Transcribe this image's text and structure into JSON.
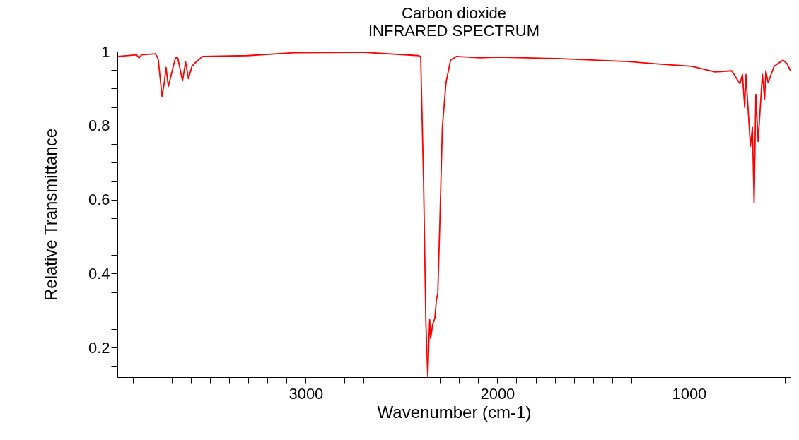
{
  "chart_data": {
    "type": "line",
    "title": "Carbon dioxide",
    "subtitle": "INFRARED SPECTRUM",
    "xlabel": "Wavenumber (cm-1)",
    "ylabel": "Relative Transmittance",
    "x": [
      3981,
      3883,
      3870,
      3858,
      3784,
      3770,
      3750,
      3738,
      3729,
      3717,
      3680,
      3668,
      3643,
      3627,
      3612,
      3594,
      3576,
      3539,
      3306,
      3060,
      2692,
      2410,
      2400,
      2385,
      2373,
      2363,
      2358,
      2353,
      2348,
      2338,
      2326,
      2318,
      2311,
      2301,
      2287,
      2268,
      2244,
      2213,
      2090,
      2002,
      1685,
      1317,
      1170,
      985,
      863,
      777,
      734,
      721,
      709,
      703,
      679,
      669,
      660,
      651,
      639,
      617,
      605,
      599,
      587,
      556,
      509,
      488,
      470
    ],
    "series": [
      {
        "color": "#ff0000",
        "values": [
          0.987,
          0.991,
          0.983,
          0.991,
          0.994,
          0.98,
          0.879,
          0.916,
          0.957,
          0.906,
          0.983,
          0.983,
          0.921,
          0.972,
          0.927,
          0.96,
          0.97,
          0.987,
          0.989,
          0.997,
          0.998,
          0.989,
          0.986,
          0.649,
          0.267,
          0.121,
          0.203,
          0.276,
          0.225,
          0.261,
          0.28,
          0.33,
          0.346,
          0.521,
          0.795,
          0.916,
          0.977,
          0.987,
          0.983,
          0.985,
          0.981,
          0.973,
          0.967,
          0.96,
          0.945,
          0.948,
          0.913,
          0.938,
          0.849,
          0.938,
          0.744,
          0.795,
          0.591,
          0.884,
          0.757,
          0.938,
          0.872,
          0.948,
          0.916,
          0.96,
          0.977,
          0.967,
          0.948
        ]
      }
    ],
    "xlim": [
      3983,
      470
    ],
    "xticks": [
      {
        "value": 3900,
        "label": null
      },
      {
        "value": 3800,
        "label": null
      },
      {
        "value": 3700,
        "label": null
      },
      {
        "value": 3600,
        "label": null
      },
      {
        "value": 3500,
        "label": null
      },
      {
        "value": 3400,
        "label": null
      },
      {
        "value": 3300,
        "label": null
      },
      {
        "value": 3200,
        "label": null
      },
      {
        "value": 3100,
        "label": null
      },
      3000,
      {
        "value": 2900,
        "label": null
      },
      {
        "value": 2800,
        "label": null
      },
      {
        "value": 2700,
        "label": null
      },
      {
        "value": 2600,
        "label": null
      },
      {
        "value": 2500,
        "label": null
      },
      {
        "value": 2400,
        "label": null
      },
      {
        "value": 2300,
        "label": null
      },
      {
        "value": 2200,
        "label": null
      },
      {
        "value": 2100,
        "label": null
      },
      2000,
      {
        "value": 1900,
        "label": null
      },
      {
        "value": 1800,
        "label": null
      },
      {
        "value": 1700,
        "label": null
      },
      {
        "value": 1600,
        "label": null
      },
      {
        "value": 1500,
        "label": null
      },
      {
        "value": 1400,
        "label": null
      },
      {
        "value": 1300,
        "label": null
      },
      {
        "value": 1200,
        "label": null
      },
      {
        "value": 1100,
        "label": null
      },
      1000,
      {
        "value": 900,
        "label": null
      },
      {
        "value": 800,
        "label": null
      },
      {
        "value": 700,
        "label": null
      },
      {
        "value": 600,
        "label": null
      },
      {
        "value": 500,
        "label": null
      }
    ],
    "ylim": [
      0.12,
      1
    ],
    "yticks": [
      {
        "value": 0.15,
        "label": null
      },
      0.2,
      {
        "value": 0.25,
        "label": null
      },
      {
        "value": 0.3,
        "label": null
      },
      {
        "value": 0.35,
        "label": null
      },
      0.4,
      {
        "value": 0.45,
        "label": null
      },
      {
        "value": 0.5,
        "label": null
      },
      {
        "value": 0.55,
        "label": null
      },
      0.6,
      {
        "value": 0.65,
        "label": null
      },
      {
        "value": 0.7,
        "label": null
      },
      {
        "value": 0.75,
        "label": null
      },
      0.8,
      {
        "value": 0.85,
        "label": null
      },
      {
        "value": 0.9,
        "label": null
      },
      {
        "value": 0.95,
        "label": null
      },
      1
    ],
    "grid": false,
    "marker": "none",
    "line_style": "solid"
  }
}
